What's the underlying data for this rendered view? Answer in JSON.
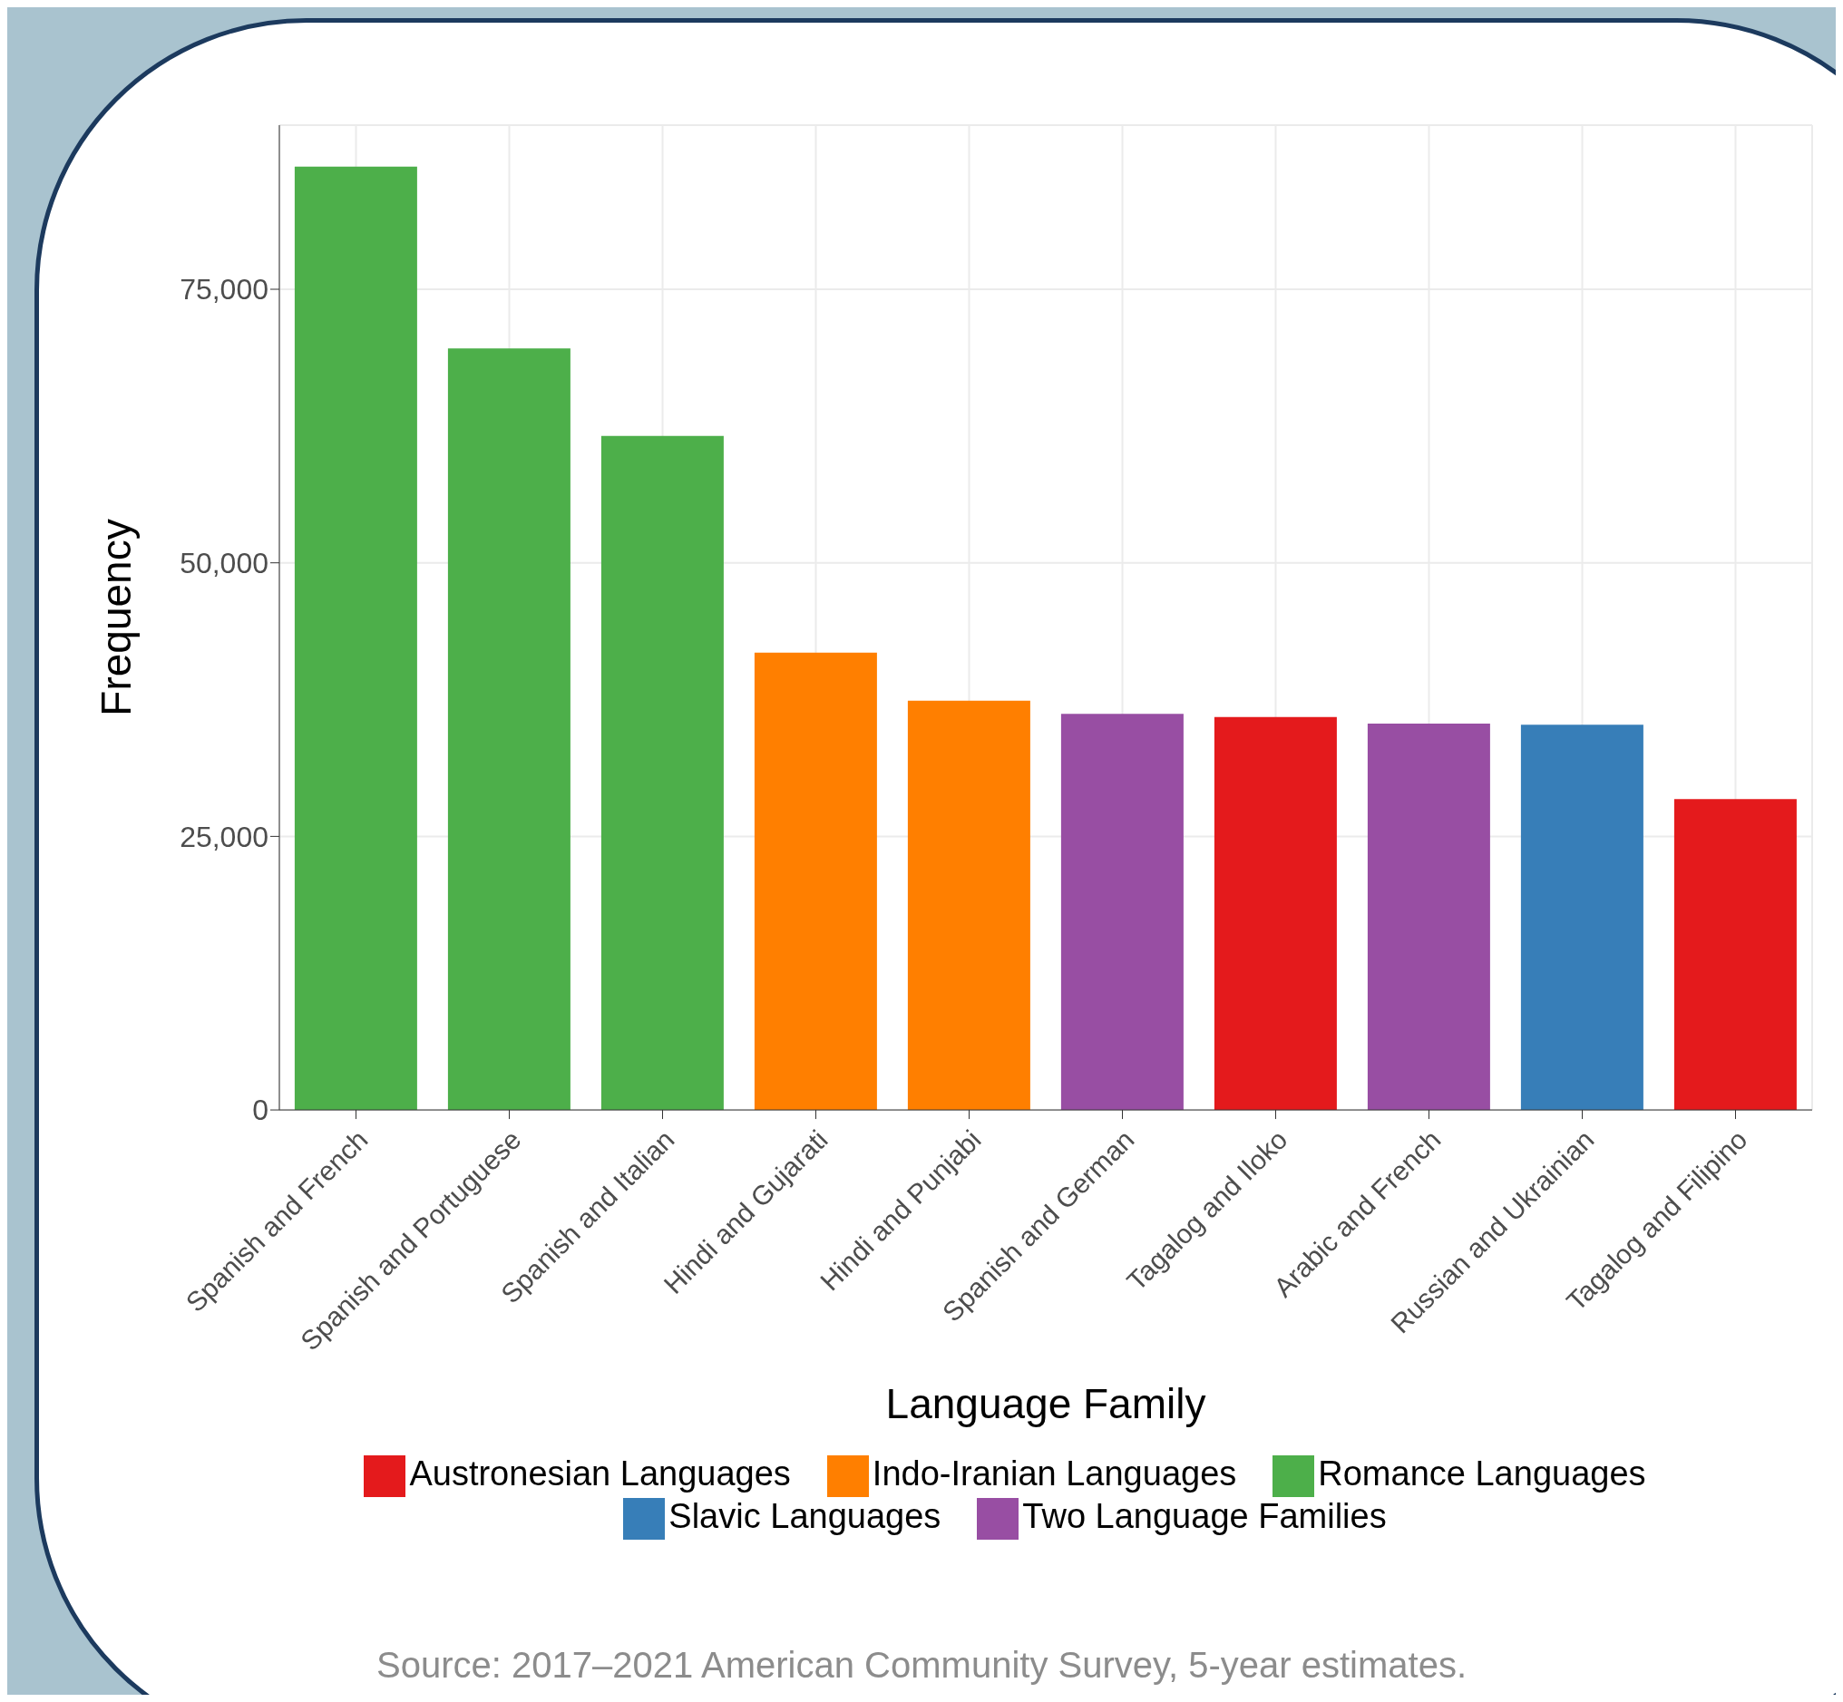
{
  "chart_data": {
    "type": "bar",
    "xlabel": "Language Family",
    "ylabel": "Frequency",
    "categories": [
      "Spanish and French",
      "Spanish and Portuguese",
      "Spanish and Italian",
      "Hindi and Gujarati",
      "Hindi and Punjabi",
      "Spanish and German",
      "Tagalog and Iloko",
      "Arabic and French",
      "Russian and Ukrainian",
      "Tagalog and Filipino"
    ],
    "series": [
      {
        "name": "Austronesian Languages",
        "color": "#e41a1c",
        "values": [
          null,
          null,
          null,
          null,
          null,
          null,
          35900,
          null,
          null,
          28400
        ]
      },
      {
        "name": "Indo-Iranian Languages",
        "color": "#ff7f00",
        "values": [
          null,
          null,
          null,
          41800,
          37400,
          null,
          null,
          null,
          null,
          null
        ]
      },
      {
        "name": "Romance Languages",
        "color": "#4daf4a",
        "values": [
          86200,
          69600,
          61600,
          null,
          null,
          null,
          null,
          null,
          null,
          null
        ]
      },
      {
        "name": "Slavic Languages",
        "color": "#377eb8",
        "values": [
          null,
          null,
          null,
          null,
          null,
          null,
          null,
          null,
          35200,
          null
        ]
      },
      {
        "name": "Two Language Families",
        "color": "#984ea3",
        "values": [
          null,
          null,
          null,
          null,
          null,
          36200,
          null,
          35300,
          null,
          null
        ]
      }
    ],
    "stacked": true,
    "ylim": [
      0,
      90000
    ],
    "yticks": [
      0,
      {
        "value": 25000,
        "label": "25,000"
      },
      {
        "value": 50000,
        "label": "50,000"
      },
      {
        "value": 75000,
        "label": "75,000"
      }
    ],
    "grid": true,
    "legend": "bottom",
    "annotations": [
      "Source: 2017–2021 American Community Survey, 5-year estimates."
    ]
  }
}
